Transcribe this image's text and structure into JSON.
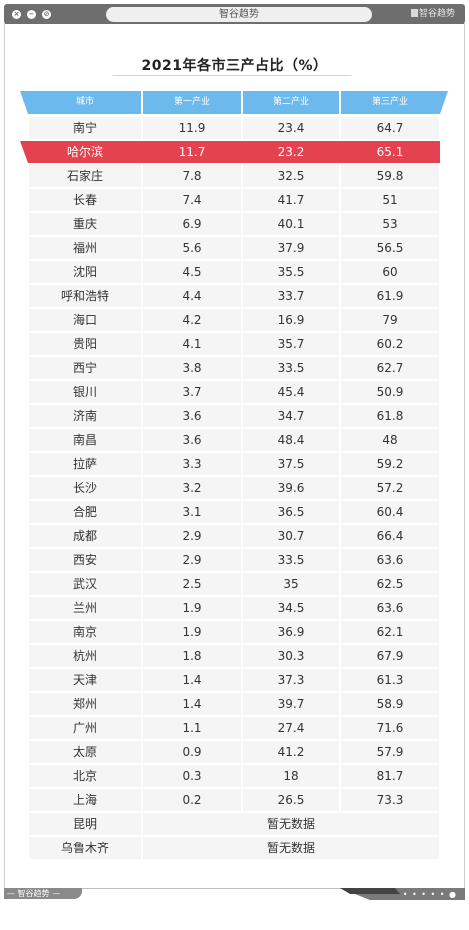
{
  "window": {
    "address_title": "智谷趋势",
    "brand": "智谷趋势",
    "footer_brand": "— 智谷趋势 —",
    "footer_dots": "• • • • • ●"
  },
  "colors": {
    "header_blue": "#6cb9ee",
    "highlight_red": "#e5424f",
    "cell_bg": "#f5f5f5"
  },
  "chart_data": {
    "type": "table",
    "title": "2021年各市三产占比（%）",
    "columns": [
      "城市",
      "第一产业",
      "第二产业",
      "第三产业"
    ],
    "highlight_row": "哈尔滨",
    "rows": [
      [
        "南宁",
        "11.9",
        "23.4",
        "64.7"
      ],
      [
        "哈尔滨",
        "11.7",
        "23.2",
        "65.1"
      ],
      [
        "石家庄",
        "7.8",
        "32.5",
        "59.8"
      ],
      [
        "长春",
        "7.4",
        "41.7",
        "51"
      ],
      [
        "重庆",
        "6.9",
        "40.1",
        "53"
      ],
      [
        "福州",
        "5.6",
        "37.9",
        "56.5"
      ],
      [
        "沈阳",
        "4.5",
        "35.5",
        "60"
      ],
      [
        "呼和浩特",
        "4.4",
        "33.7",
        "61.9"
      ],
      [
        "海口",
        "4.2",
        "16.9",
        "79"
      ],
      [
        "贵阳",
        "4.1",
        "35.7",
        "60.2"
      ],
      [
        "西宁",
        "3.8",
        "33.5",
        "62.7"
      ],
      [
        "银川",
        "3.7",
        "45.4",
        "50.9"
      ],
      [
        "济南",
        "3.6",
        "34.7",
        "61.8"
      ],
      [
        "南昌",
        "3.6",
        "48.4",
        "48"
      ],
      [
        "拉萨",
        "3.3",
        "37.5",
        "59.2"
      ],
      [
        "长沙",
        "3.2",
        "39.6",
        "57.2"
      ],
      [
        "合肥",
        "3.1",
        "36.5",
        "60.4"
      ],
      [
        "成都",
        "2.9",
        "30.7",
        "66.4"
      ],
      [
        "西安",
        "2.9",
        "33.5",
        "63.6"
      ],
      [
        "武汉",
        "2.5",
        "35",
        "62.5"
      ],
      [
        "兰州",
        "1.9",
        "34.5",
        "63.6"
      ],
      [
        "南京",
        "1.9",
        "36.9",
        "62.1"
      ],
      [
        "杭州",
        "1.8",
        "30.3",
        "67.9"
      ],
      [
        "天津",
        "1.4",
        "37.3",
        "61.3"
      ],
      [
        "郑州",
        "1.4",
        "39.7",
        "58.9"
      ],
      [
        "广州",
        "1.1",
        "27.4",
        "71.6"
      ],
      [
        "太原",
        "0.9",
        "41.2",
        "57.9"
      ],
      [
        "北京",
        "0.3",
        "18",
        "81.7"
      ],
      [
        "上海",
        "0.2",
        "26.5",
        "73.3"
      ]
    ],
    "no_data_rows": [
      {
        "city": "昆明",
        "note": "暂无数据"
      },
      {
        "city": "乌鲁木齐",
        "note": "暂无数据"
      }
    ]
  }
}
